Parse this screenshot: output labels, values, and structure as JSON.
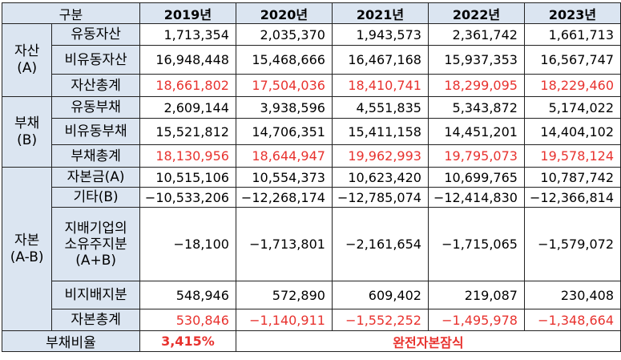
{
  "header": {
    "label": "구분",
    "years": [
      "2019년",
      "2020년",
      "2021년",
      "2022년",
      "2023년"
    ]
  },
  "groups": {
    "assets": {
      "label_line1": "자산",
      "label_line2": "(A)"
    },
    "liabilities": {
      "label_line1": "부채",
      "label_line2": "(B)"
    },
    "equity": {
      "label_line1": "자본",
      "label_line2": "(A-B)"
    }
  },
  "rows": {
    "current_assets": {
      "label": "유동자산",
      "values": [
        "1,713,354",
        "2,035,370",
        "1,943,573",
        "2,361,742",
        "1,661,713"
      ]
    },
    "noncurrent_assets": {
      "label": "비유동자산",
      "values": [
        "16,948,448",
        "15,468,666",
        "16,467,168",
        "15,937,353",
        "16,567,747"
      ]
    },
    "total_assets": {
      "label": "자산총계",
      "values": [
        "18,661,802",
        "17,504,036",
        "18,410,741",
        "18,299,095",
        "18,229,460"
      ]
    },
    "current_liabilities": {
      "label": "유동부채",
      "values": [
        "2,609,144",
        "3,938,596",
        "4,551,835",
        "5,343,872",
        "5,174,022"
      ]
    },
    "noncurrent_liabilities": {
      "label": "비유동부채",
      "values": [
        "15,521,812",
        "14,706,351",
        "15,411,158",
        "14,451,201",
        "14,404,102"
      ]
    },
    "total_liabilities": {
      "label": "부채총계",
      "values": [
        "18,130,956",
        "18,644,947",
        "19,962,993",
        "19,795,073",
        "19,578,124"
      ]
    },
    "capital_stock": {
      "label": "자본금(A)",
      "values": [
        "10,515,106",
        "10,554,373",
        "10,623,420",
        "10,699,765",
        "10,787,742"
      ]
    },
    "other": {
      "label": "기타(B)",
      "values": [
        "−10,533,206",
        "−12,268,174",
        "−12,785,074",
        "−12,414,830",
        "−12,366,814"
      ]
    },
    "controlling": {
      "label_line1": "지배기업의",
      "label_line2": "소유주지분",
      "label_line3": "(A+B)",
      "values": [
        "−18,100",
        "−1,713,801",
        "−2,161,654",
        "−1,715,065",
        "−1,579,072"
      ]
    },
    "noncontrolling": {
      "label": "비지배지분",
      "values": [
        "548,946",
        "572,890",
        "609,402",
        "219,087",
        "230,408"
      ]
    },
    "total_equity": {
      "label": "자본총계",
      "values": [
        "530,846",
        "−1,140,911",
        "−1,552,252",
        "−1,495,978",
        "−1,348,664"
      ]
    }
  },
  "ratio": {
    "label": "부채비율",
    "value_2019": "3,415%",
    "note": "완전자본잠식"
  },
  "colors": {
    "header_bg": "#dbe5f1",
    "highlight_red": "#e8322e"
  }
}
